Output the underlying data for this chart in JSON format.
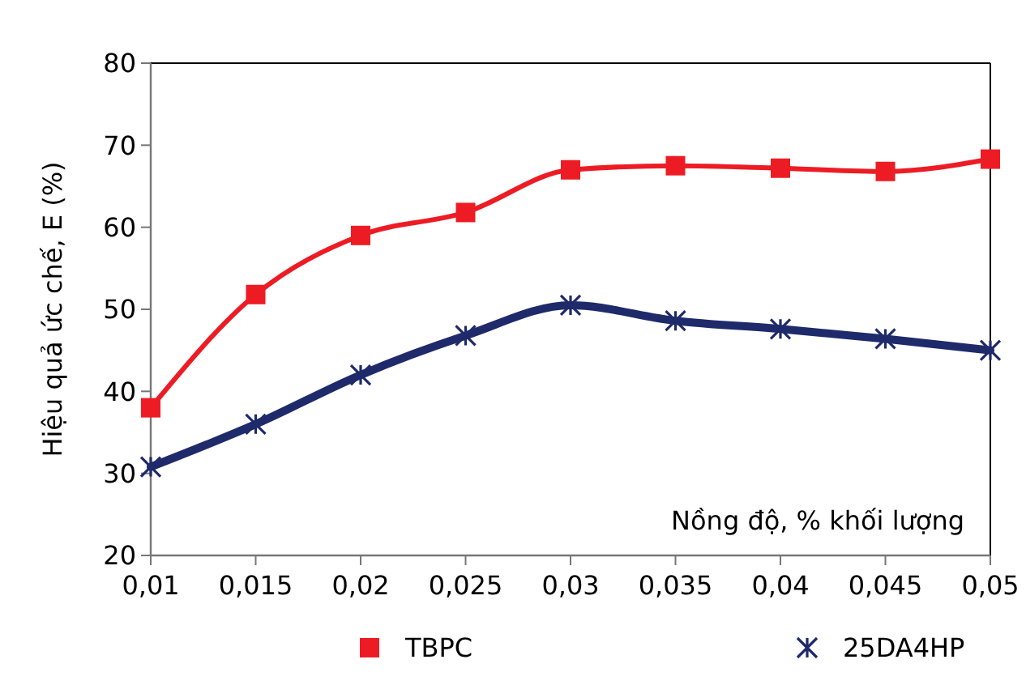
{
  "chart_data": {
    "type": "line",
    "xlabel": "Nồng độ, % khối lượng",
    "ylabel": "Hiệu quả ức chế, E (%)",
    "x": [
      0.01,
      0.015,
      0.02,
      0.025,
      0.03,
      0.035,
      0.04,
      0.045,
      0.05
    ],
    "series": [
      {
        "name": "TBPC",
        "color": "#ed1c24",
        "marker": "square",
        "values": [
          38,
          51.8,
          59,
          61.8,
          67,
          67.5,
          67.2,
          66.8,
          68.3
        ]
      },
      {
        "name": "25DA4HP",
        "color": "#1f2a6b",
        "marker": "cross",
        "values": [
          30.8,
          36,
          42,
          46.8,
          50.5,
          48.6,
          47.6,
          46.4,
          45
        ]
      }
    ],
    "xlim": [
      0.01,
      0.05
    ],
    "ylim": [
      20,
      80
    ],
    "xticks": [
      {
        "value": 0.01,
        "label": "0,01"
      },
      {
        "value": 0.015,
        "label": "0,015"
      },
      {
        "value": 0.02,
        "label": "0,02"
      },
      {
        "value": 0.025,
        "label": "0,025"
      },
      {
        "value": 0.03,
        "label": "0,03"
      },
      {
        "value": 0.035,
        "label": "0,035"
      },
      {
        "value": 0.04,
        "label": "0,04"
      },
      {
        "value": 0.045,
        "label": "0,045"
      },
      {
        "value": 0.05,
        "label": "0,05"
      }
    ],
    "yticks": [
      20,
      30,
      40,
      50,
      60,
      70,
      80
    ],
    "grid": false,
    "legend": "bottom",
    "line_style": "solid"
  }
}
